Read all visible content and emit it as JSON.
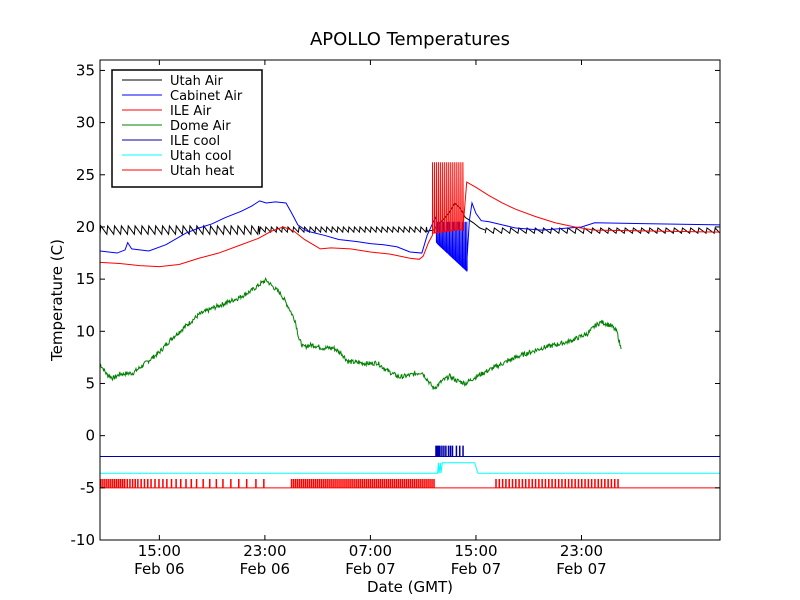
{
  "chart_data": {
    "type": "line",
    "title": "APOLLO Temperatures",
    "xlabel": "Date (GMT)",
    "ylabel": "Temperature (C)",
    "xlim": [
      10.5,
      57.5
    ],
    "ylim": [
      -10,
      36
    ],
    "yticks": [
      -10,
      -5,
      0,
      5,
      10,
      15,
      20,
      25,
      30,
      35
    ],
    "xticks": [
      {
        "x": 15,
        "time": "15:00",
        "date": "Feb 06"
      },
      {
        "x": 23,
        "time": "23:00",
        "date": "Feb 06"
      },
      {
        "x": 31,
        "time": "07:00",
        "date": "Feb 07"
      },
      {
        "x": 39,
        "time": "15:00",
        "date": "Feb 07"
      },
      {
        "x": 47,
        "time": "23:00",
        "date": "Feb 07"
      }
    ],
    "legend_position": "top-left",
    "series": [
      {
        "name": "Utah Air",
        "color": "#000000",
        "kind": "sawtooth",
        "pieces": [
          {
            "x0": 10.5,
            "x1": 22.6,
            "lo": 19.3,
            "hi": 20.1,
            "period": 0.52
          },
          {
            "x0": 22.6,
            "x1": 35.3,
            "lo": 19.5,
            "hi": 20.0,
            "period": 0.42
          },
          {
            "x0": 39.7,
            "x1": 57.5,
            "lo": 19.4,
            "hi": 19.9,
            "period": 0.62
          }
        ],
        "points": [
          [
            35.3,
            19.6
          ],
          [
            35.8,
            19.7
          ],
          [
            36.2,
            20.3
          ],
          [
            36.6,
            20.8
          ],
          [
            37.0,
            21.4
          ],
          [
            37.4,
            22.3
          ],
          [
            37.8,
            21.8
          ],
          [
            38.2,
            20.9
          ],
          [
            38.8,
            20.4
          ],
          [
            39.3,
            19.9
          ],
          [
            39.7,
            19.7
          ]
        ]
      },
      {
        "name": "Cabinet Air",
        "color": "#0000ff",
        "kind": "line",
        "points": [
          [
            10.5,
            17.7
          ],
          [
            11.8,
            17.5
          ],
          [
            12.4,
            17.8
          ],
          [
            12.6,
            18.5
          ],
          [
            12.9,
            17.9
          ],
          [
            14.2,
            17.7
          ],
          [
            15.5,
            18.3
          ],
          [
            17.0,
            19.4
          ],
          [
            18.0,
            19.9
          ],
          [
            19.0,
            20.3
          ],
          [
            20.0,
            20.9
          ],
          [
            21.2,
            21.5
          ],
          [
            22.0,
            22.0
          ],
          [
            22.6,
            22.5
          ],
          [
            23.1,
            22.3
          ],
          [
            23.8,
            22.4
          ],
          [
            24.6,
            22.3
          ],
          [
            25.0,
            21.4
          ],
          [
            25.5,
            20.2
          ],
          [
            26.2,
            19.6
          ],
          [
            27.5,
            19.2
          ],
          [
            28.6,
            18.8
          ],
          [
            30.0,
            18.6
          ],
          [
            31.0,
            18.4
          ],
          [
            32.0,
            18.3
          ],
          [
            33.0,
            18.1
          ],
          [
            34.0,
            17.6
          ],
          [
            34.9,
            17.5
          ],
          [
            35.3,
            19.2
          ],
          [
            35.7,
            20.3
          ],
          [
            36.0,
            21.0
          ]
        ],
        "spikes": [
          {
            "x0": 36.0,
            "x1": 38.3,
            "count": 22,
            "hi": 20.5,
            "lo0": 18.5,
            "lo1": 15.8
          }
        ],
        "tail": [
          [
            38.3,
            16.5
          ],
          [
            38.5,
            20.6
          ],
          [
            38.7,
            22.3
          ],
          [
            39.0,
            21.3
          ],
          [
            39.4,
            20.6
          ],
          [
            40.0,
            20.5
          ],
          [
            41.0,
            20.2
          ],
          [
            42.0,
            19.9
          ],
          [
            44.0,
            19.7
          ],
          [
            46.0,
            19.9
          ],
          [
            47.0,
            20.0
          ],
          [
            48.0,
            20.4
          ],
          [
            57.5,
            20.2
          ]
        ]
      },
      {
        "name": "ILE Air",
        "color": "#ff0000",
        "kind": "line",
        "points": [
          [
            10.5,
            16.6
          ],
          [
            12.0,
            16.5
          ],
          [
            13.5,
            16.3
          ],
          [
            15.0,
            16.2
          ],
          [
            16.5,
            16.4
          ],
          [
            18.0,
            17.0
          ],
          [
            19.5,
            17.5
          ],
          [
            21.0,
            18.2
          ],
          [
            22.5,
            18.9
          ],
          [
            23.5,
            19.6
          ],
          [
            24.4,
            20.0
          ],
          [
            25.2,
            19.6
          ],
          [
            26.0,
            18.8
          ],
          [
            26.8,
            18.2
          ],
          [
            27.2,
            17.9
          ],
          [
            28.0,
            18.0
          ],
          [
            29.5,
            17.9
          ],
          [
            31.0,
            17.6
          ],
          [
            32.5,
            17.4
          ],
          [
            34.0,
            17.0
          ],
          [
            34.7,
            16.9
          ],
          [
            35.0,
            17.2
          ],
          [
            35.4,
            18.5
          ],
          [
            35.7,
            19.2
          ]
        ],
        "spikes": [
          {
            "x0": 35.7,
            "x1": 38.0,
            "count": 16,
            "hi": 26.2,
            "lo0": 19.4,
            "lo1": 19.8
          }
        ],
        "tail": [
          [
            38.0,
            19.6
          ],
          [
            38.3,
            24.3
          ],
          [
            39.0,
            23.8
          ],
          [
            40.0,
            23.0
          ],
          [
            41.0,
            22.3
          ],
          [
            42.0,
            21.7
          ],
          [
            43.5,
            21.0
          ],
          [
            45.0,
            20.4
          ],
          [
            46.5,
            20.0
          ],
          [
            48.0,
            19.7
          ],
          [
            57.5,
            19.5
          ]
        ]
      },
      {
        "name": "Dome Air",
        "color": "#008000",
        "kind": "noisy",
        "points": [
          [
            10.5,
            6.9
          ],
          [
            11.0,
            5.9
          ],
          [
            11.5,
            5.5
          ],
          [
            12.0,
            5.9
          ],
          [
            13.0,
            6.0
          ],
          [
            14.0,
            7.0
          ],
          [
            15.0,
            8.0
          ],
          [
            16.0,
            9.4
          ],
          [
            17.0,
            10.5
          ],
          [
            18.0,
            11.6
          ],
          [
            19.0,
            12.2
          ],
          [
            20.0,
            12.7
          ],
          [
            21.0,
            13.2
          ],
          [
            22.0,
            13.9
          ],
          [
            22.7,
            14.6
          ],
          [
            23.1,
            14.9
          ],
          [
            23.5,
            14.4
          ],
          [
            24.2,
            13.6
          ],
          [
            24.8,
            12.3
          ],
          [
            25.3,
            11.0
          ],
          [
            25.6,
            9.2
          ],
          [
            25.9,
            8.5
          ],
          [
            26.6,
            8.7
          ],
          [
            27.4,
            8.4
          ],
          [
            28.2,
            8.4
          ],
          [
            28.8,
            7.9
          ],
          [
            29.3,
            7.1
          ],
          [
            30.0,
            7.0
          ],
          [
            31.0,
            6.9
          ],
          [
            31.5,
            7.0
          ],
          [
            32.3,
            6.2
          ],
          [
            33.2,
            5.6
          ],
          [
            34.0,
            5.8
          ],
          [
            34.9,
            6.1
          ],
          [
            35.3,
            5.4
          ],
          [
            35.8,
            4.5
          ],
          [
            36.4,
            5.2
          ],
          [
            37.0,
            5.7
          ],
          [
            37.5,
            5.3
          ],
          [
            38.2,
            5.0
          ],
          [
            38.8,
            5.5
          ],
          [
            40.0,
            6.3
          ],
          [
            42.0,
            7.5
          ],
          [
            44.0,
            8.4
          ],
          [
            46.0,
            9.0
          ],
          [
            47.5,
            9.8
          ],
          [
            48.0,
            10.5
          ],
          [
            48.5,
            10.9
          ],
          [
            49.3,
            10.5
          ],
          [
            49.7,
            9.9
          ],
          [
            50.0,
            8.3
          ]
        ]
      },
      {
        "name": "ILE cool",
        "color": "#0000aa",
        "kind": "pulses",
        "base": -2.0,
        "high": -1.0,
        "pulses": [
          35.95,
          36.05,
          36.15,
          36.25,
          36.4,
          36.55,
          36.7,
          36.9,
          37.05,
          37.2,
          37.5,
          37.75,
          38.0
        ]
      },
      {
        "name": "Utah cool",
        "color": "#00ffff",
        "kind": "step",
        "points": [
          [
            10.5,
            -3.6
          ],
          [
            36.1,
            -3.6
          ],
          [
            36.15,
            -2.6
          ],
          [
            36.2,
            -3.6
          ],
          [
            36.3,
            -2.6
          ],
          [
            36.35,
            -3.6
          ],
          [
            36.45,
            -2.6
          ],
          [
            38.9,
            -2.6
          ],
          [
            39.15,
            -3.6
          ],
          [
            57.5,
            -3.6
          ]
        ]
      },
      {
        "name": "Utah heat",
        "color": "#ff0000",
        "kind": "pulses",
        "base": -5.0,
        "high": -4.2,
        "drop": [
          10.5,
          -6.1
        ],
        "pulses": [
          10.55,
          10.7,
          10.85,
          11.0,
          11.15,
          11.3,
          11.45,
          11.6,
          11.75,
          11.9,
          12.05,
          12.2,
          12.35,
          12.55,
          12.75,
          12.95,
          13.15,
          13.35,
          13.6,
          13.85,
          14.1,
          14.35,
          14.65,
          14.95,
          15.25,
          15.55,
          15.9,
          16.25,
          16.6,
          17.0,
          17.4,
          17.8,
          18.3,
          18.8,
          19.3,
          19.8,
          20.4,
          21.0,
          21.6,
          22.3,
          22.9,
          25.0,
          25.15,
          25.3,
          25.45,
          25.6,
          25.75,
          25.9,
          26.05,
          26.2,
          26.35,
          26.5,
          26.65,
          26.8,
          26.95,
          27.1,
          27.25,
          27.4,
          27.55,
          27.7,
          27.85,
          28.0,
          28.15,
          28.3,
          28.45,
          28.6,
          28.75,
          28.9,
          29.05,
          29.2,
          29.35,
          29.5,
          29.65,
          29.8,
          29.95,
          30.1,
          30.25,
          30.4,
          30.55,
          30.7,
          30.85,
          31.0,
          31.15,
          31.3,
          31.45,
          31.6,
          31.75,
          31.9,
          32.05,
          32.2,
          32.35,
          32.5,
          32.65,
          32.8,
          32.95,
          33.1,
          33.25,
          33.4,
          33.55,
          33.7,
          33.85,
          34.0,
          34.15,
          34.3,
          34.45,
          34.6,
          34.75,
          34.9,
          35.05,
          35.2,
          35.35,
          35.5,
          35.65,
          35.8,
          40.5,
          40.75,
          41.0,
          41.25,
          41.5,
          41.75,
          42.0,
          42.25,
          42.5,
          42.75,
          43.0,
          43.25,
          43.5,
          43.75,
          44.0,
          44.25,
          44.5,
          44.75,
          45.0,
          45.25,
          45.5,
          45.75,
          46.0,
          46.25,
          46.5,
          46.75,
          47.0,
          47.25,
          47.5,
          47.75,
          48.0,
          48.25,
          48.5,
          48.75,
          49.0,
          49.25,
          49.5,
          49.75
        ]
      }
    ]
  }
}
